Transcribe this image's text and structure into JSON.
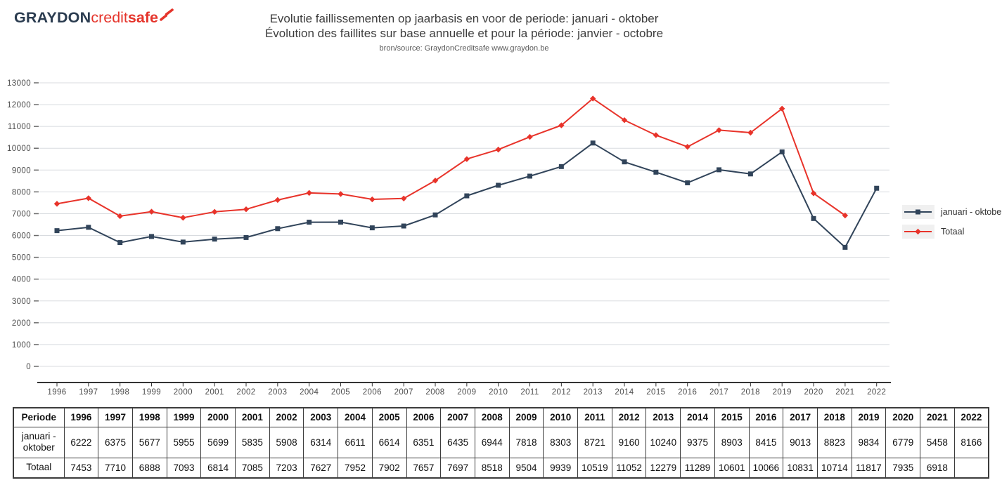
{
  "header": {
    "logo_graydon": "GRAYDON",
    "logo_credit": "credit",
    "logo_safe": "safe",
    "title_nl": "Evolutie faillissementen op jaarbasis en voor de periode: januari - oktober",
    "title_fr": "Évolution des faillites sur base annuelle et pour la période: janvier - octobre",
    "source": "bron/source: GraydonCreditsafe www.graydon.be"
  },
  "colors": {
    "logo_navy": "#2b3c50",
    "logo_red": "#e5342b",
    "series_januari_oktober": "#31445a",
    "series_totaal": "#e8332a",
    "grid": "#d8dbdf",
    "axis": "#333333",
    "tick_text": "#4c4c4c",
    "legend_swatch_bg": "#f0f0f0"
  },
  "chart_data": {
    "type": "line",
    "x": [
      "1996",
      "1997",
      "1998",
      "1999",
      "2000",
      "2001",
      "2002",
      "2003",
      "2004",
      "2005",
      "2006",
      "2007",
      "2008",
      "2009",
      "2010",
      "2011",
      "2012",
      "2013",
      "2014",
      "2015",
      "2016",
      "2017",
      "2018",
      "2019",
      "2020",
      "2021",
      "2022"
    ],
    "ylim": [
      0,
      13000
    ],
    "ytick_step": 1000,
    "grid": true,
    "legend_position": "right",
    "series": [
      {
        "name": "januari - oktober",
        "color": "#31445a",
        "marker": "square",
        "values": [
          6222,
          6375,
          5677,
          5955,
          5699,
          5835,
          5908,
          6314,
          6611,
          6614,
          6351,
          6435,
          6944,
          7818,
          8303,
          8721,
          9160,
          10240,
          9375,
          8903,
          8415,
          9013,
          8823,
          9834,
          6779,
          5458,
          8166
        ]
      },
      {
        "name": "Totaal",
        "color": "#e8332a",
        "marker": "diamond",
        "values": [
          7453,
          7710,
          6888,
          7093,
          6814,
          7085,
          7203,
          7627,
          7952,
          7902,
          7657,
          7697,
          8518,
          9504,
          9939,
          10519,
          11052,
          12279,
          11289,
          10601,
          10066,
          10831,
          10714,
          11817,
          7935,
          6918,
          null
        ]
      }
    ]
  },
  "table": {
    "corner_label": "Periode"
  }
}
